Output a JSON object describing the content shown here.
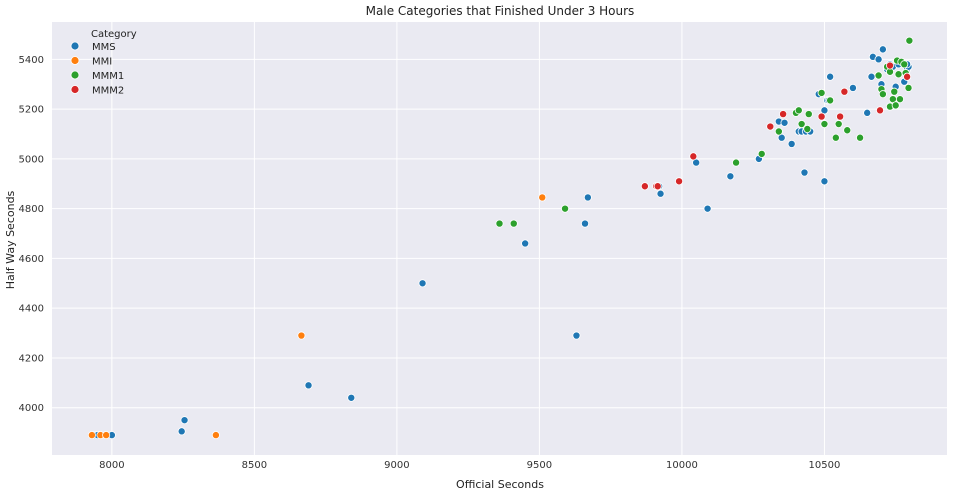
{
  "chart_data": {
    "type": "scatter",
    "title": "Male Categories that Finished Under 3 Hours",
    "xlabel": "Official Seconds",
    "ylabel": "Half Way Seconds",
    "xlim": [
      7790,
      10930
    ],
    "ylim": [
      3810,
      5550
    ],
    "xticks": [
      8000,
      8500,
      9000,
      9500,
      10000,
      10500
    ],
    "yticks": [
      4000,
      4200,
      4400,
      4600,
      4800,
      5000,
      5200,
      5400
    ],
    "grid": true,
    "background": "#eaeaf2",
    "legend": {
      "title": "Category",
      "placement": "top-left"
    },
    "series": [
      {
        "name": "MMS",
        "color": "#1f77b4",
        "points": [
          [
            7940,
            3890
          ],
          [
            7950,
            3890
          ],
          [
            8000,
            3890
          ],
          [
            8245,
            3905
          ],
          [
            8255,
            3950
          ],
          [
            8690,
            4090
          ],
          [
            8840,
            4040
          ],
          [
            9090,
            4500
          ],
          [
            9450,
            4660
          ],
          [
            9630,
            4290
          ],
          [
            9660,
            4740
          ],
          [
            9670,
            4845
          ],
          [
            9920,
            4890
          ],
          [
            9925,
            4860
          ],
          [
            10050,
            4985
          ],
          [
            10090,
            4800
          ],
          [
            10170,
            4930
          ],
          [
            10270,
            5000
          ],
          [
            10340,
            5150
          ],
          [
            10350,
            5085
          ],
          [
            10360,
            5145
          ],
          [
            10385,
            5060
          ],
          [
            10410,
            5110
          ],
          [
            10420,
            5110
          ],
          [
            10430,
            4945
          ],
          [
            10435,
            5110
          ],
          [
            10450,
            5110
          ],
          [
            10480,
            5260
          ],
          [
            10500,
            4910
          ],
          [
            10500,
            5195
          ],
          [
            10510,
            5235
          ],
          [
            10515,
            5235
          ],
          [
            10520,
            5330
          ],
          [
            10600,
            5285
          ],
          [
            10650,
            5185
          ],
          [
            10670,
            5410
          ],
          [
            10665,
            5330
          ],
          [
            10690,
            5400
          ],
          [
            10700,
            5300
          ],
          [
            10705,
            5440
          ],
          [
            10720,
            5360
          ],
          [
            10730,
            5380
          ],
          [
            10740,
            5370
          ],
          [
            10750,
            5290
          ],
          [
            10760,
            5380
          ],
          [
            10770,
            5390
          ],
          [
            10780,
            5310
          ],
          [
            10790,
            5360
          ],
          [
            10795,
            5370
          ],
          [
            10790,
            5380
          ]
        ]
      },
      {
        "name": "MMI",
        "color": "#ff7f0e",
        "points": [
          [
            7930,
            3890
          ],
          [
            7960,
            3890
          ],
          [
            7980,
            3890
          ],
          [
            8365,
            3890
          ],
          [
            8665,
            4290
          ],
          [
            9510,
            4845
          ]
        ]
      },
      {
        "name": "MMM1",
        "color": "#2ca02c",
        "points": [
          [
            9360,
            4740
          ],
          [
            9410,
            4740
          ],
          [
            9590,
            4800
          ],
          [
            10190,
            4985
          ],
          [
            10280,
            5020
          ],
          [
            10340,
            5110
          ],
          [
            10400,
            5185
          ],
          [
            10410,
            5195
          ],
          [
            10420,
            5140
          ],
          [
            10440,
            5120
          ],
          [
            10445,
            5180
          ],
          [
            10490,
            5265
          ],
          [
            10500,
            5140
          ],
          [
            10520,
            5235
          ],
          [
            10540,
            5085
          ],
          [
            10550,
            5140
          ],
          [
            10580,
            5115
          ],
          [
            10625,
            5085
          ],
          [
            10690,
            5335
          ],
          [
            10700,
            5280
          ],
          [
            10705,
            5260
          ],
          [
            10720,
            5370
          ],
          [
            10730,
            5350
          ],
          [
            10730,
            5210
          ],
          [
            10740,
            5240
          ],
          [
            10745,
            5270
          ],
          [
            10750,
            5215
          ],
          [
            10755,
            5395
          ],
          [
            10760,
            5340
          ],
          [
            10765,
            5240
          ],
          [
            10770,
            5390
          ],
          [
            10780,
            5380
          ],
          [
            10785,
            5345
          ],
          [
            10790,
            5330
          ],
          [
            10795,
            5285
          ],
          [
            10798,
            5475
          ]
        ]
      },
      {
        "name": "MMM2",
        "color": "#d62728",
        "points": [
          [
            9870,
            4890
          ],
          [
            9910,
            4890
          ],
          [
            9915,
            4890
          ],
          [
            9990,
            4910
          ],
          [
            10040,
            5010
          ],
          [
            10310,
            5130
          ],
          [
            10355,
            5180
          ],
          [
            10490,
            5170
          ],
          [
            10555,
            5170
          ],
          [
            10570,
            5270
          ],
          [
            10695,
            5195
          ],
          [
            10730,
            5375
          ],
          [
            10790,
            5330
          ]
        ]
      }
    ]
  }
}
